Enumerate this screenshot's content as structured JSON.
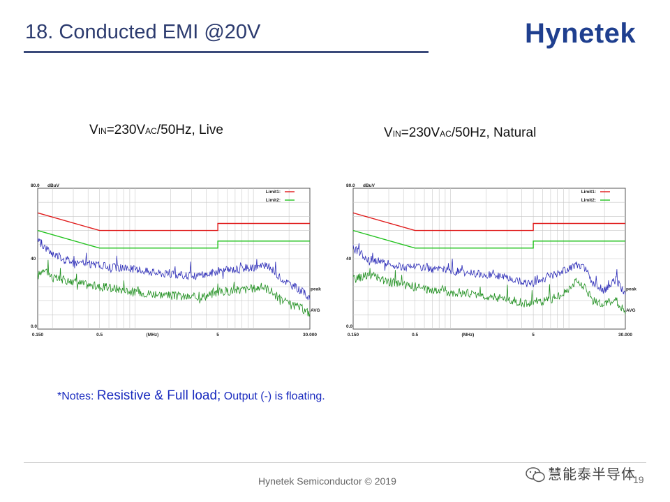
{
  "slide": {
    "title": "18. Conducted EMI @20V",
    "logo": "Hynetek",
    "footer": "Hynetek Semiconductor © 2019",
    "page_number": "19",
    "watermark": "慧能泰半导体"
  },
  "conditions": {
    "left": {
      "v": "V",
      "v_sub": "IN",
      "mid": "=230V",
      "mid_sub": "AC",
      "rest": "/50Hz, Live"
    },
    "right": {
      "v": "V",
      "v_sub": "IN",
      "mid": "=230V",
      "mid_sub": "AC",
      "rest": "/50Hz, Natural"
    }
  },
  "notes": {
    "prefix": "*Notes: ",
    "emph": "Resistive & Full load;",
    "rest": " Output (-) is floating."
  },
  "colors": {
    "limit1": "#e01a1a",
    "limit2": "#22c21e",
    "peak": "#2e2eb8",
    "avg": "#1f8f1f",
    "grid": "#c8c8c8"
  },
  "chart_data": [
    {
      "type": "line",
      "title": "VIN=230VAC/50Hz, Live",
      "ylabel": "dBuV",
      "xlabel": "(MHz)",
      "xscale": "log",
      "xlim": [
        0.15,
        30
      ],
      "ylim": [
        0,
        80
      ],
      "y_ticks": [
        "80.0",
        "40",
        "0.0"
      ],
      "x_ticks": [
        "0.150",
        "0.5",
        "(MHz)",
        "5",
        "30.000"
      ],
      "legend": [
        "Limit1:",
        "Limit2:"
      ],
      "trace_labels": {
        "peak": "peak",
        "avg": "AVG"
      },
      "series": [
        {
          "name": "Limit1",
          "x": [
            0.15,
            0.5,
            0.5,
            5,
            5,
            30
          ],
          "y": [
            66,
            56,
            56,
            56,
            60,
            60
          ]
        },
        {
          "name": "Limit2",
          "x": [
            0.15,
            0.5,
            0.5,
            5,
            5,
            30
          ],
          "y": [
            56,
            46,
            46,
            46,
            50,
            50
          ]
        },
        {
          "name": "peak",
          "x": [
            0.15,
            0.2,
            0.3,
            0.4,
            0.5,
            0.7,
            1,
            1.5,
            2,
            3,
            4,
            5,
            7,
            10,
            12,
            14,
            16,
            20,
            25,
            30
          ],
          "y": [
            50,
            43,
            38,
            37,
            36,
            35,
            34,
            32,
            31,
            30,
            31,
            33,
            34,
            35,
            36,
            35,
            30,
            26,
            22,
            18
          ]
        },
        {
          "name": "AVG",
          "x": [
            0.15,
            0.17,
            0.2,
            0.3,
            0.4,
            0.5,
            0.7,
            1,
            1.5,
            2,
            3,
            4,
            5,
            7,
            10,
            12,
            14,
            16,
            20,
            25,
            30
          ],
          "y": [
            30,
            35,
            29,
            27,
            25,
            24,
            23,
            21,
            20,
            19,
            18,
            19,
            21,
            22,
            23,
            24,
            22,
            18,
            14,
            12,
            9
          ]
        }
      ]
    },
    {
      "type": "line",
      "title": "VIN=230VAC/50Hz, Natural",
      "ylabel": "dBuV",
      "xlabel": "(MHz)",
      "xscale": "log",
      "xlim": [
        0.15,
        30
      ],
      "ylim": [
        0,
        80
      ],
      "y_ticks": [
        "80.0",
        "40",
        "0.0"
      ],
      "x_ticks": [
        "0.150",
        "0.5",
        "(MHz)",
        "5",
        "30.000"
      ],
      "legend": [
        "Limit1:",
        "Limit2:"
      ],
      "trace_labels": {
        "peak": "peak",
        "avg": "AVG"
      },
      "series": [
        {
          "name": "Limit1",
          "x": [
            0.15,
            0.5,
            0.5,
            5,
            5,
            30
          ],
          "y": [
            66,
            56,
            56,
            56,
            60,
            60
          ]
        },
        {
          "name": "Limit2",
          "x": [
            0.15,
            0.5,
            0.5,
            5,
            5,
            30
          ],
          "y": [
            56,
            46,
            46,
            46,
            50,
            50
          ]
        },
        {
          "name": "peak",
          "x": [
            0.15,
            0.2,
            0.3,
            0.4,
            0.5,
            0.7,
            1,
            1.5,
            2,
            3,
            4,
            5,
            7,
            10,
            12,
            14,
            16,
            20,
            25,
            30
          ],
          "y": [
            46,
            40,
            37,
            35,
            36,
            34,
            33,
            32,
            31,
            29,
            27,
            26,
            30,
            34,
            37,
            34,
            26,
            22,
            28,
            20
          ]
        },
        {
          "name": "AVG",
          "x": [
            0.15,
            0.2,
            0.3,
            0.4,
            0.5,
            0.7,
            1,
            1.5,
            2,
            3,
            4,
            5,
            7,
            10,
            12,
            14,
            16,
            20,
            25,
            30
          ],
          "y": [
            28,
            31,
            27,
            25,
            24,
            22,
            21,
            20,
            19,
            17,
            15,
            14,
            17,
            22,
            28,
            22,
            16,
            14,
            16,
            10
          ]
        }
      ]
    }
  ]
}
